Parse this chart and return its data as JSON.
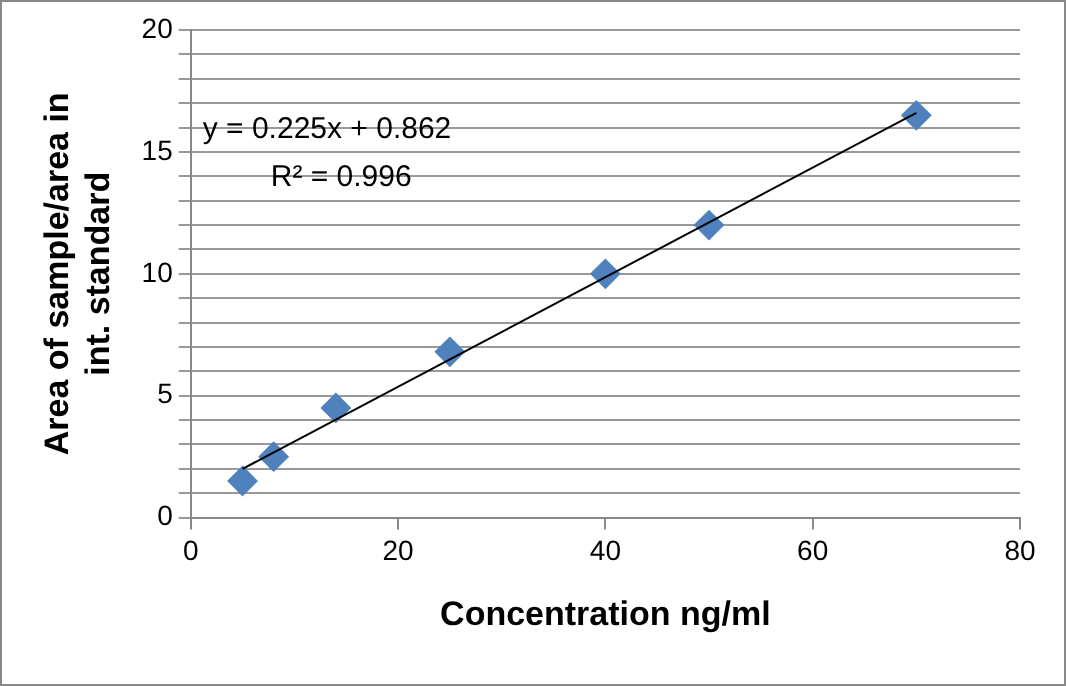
{
  "chart_data": {
    "type": "scatter",
    "xlabel": "Concentration ng/ml",
    "ylabel": "Area of sample/area in\nint. standard",
    "series": [
      {
        "color": "#4f81bd",
        "marker": "diamond",
        "x": [
          5,
          8,
          14,
          25,
          40,
          50,
          70
        ],
        "values": [
          1.5,
          2.5,
          4.5,
          6.8,
          10,
          12,
          16.5
        ]
      },
      {
        "type": "line",
        "color": "#000000",
        "marker": "none",
        "x": [
          5,
          70
        ],
        "values": [
          2.0,
          16.6
        ]
      }
    ],
    "xlim": [
      0,
      80
    ],
    "xticks": [
      0,
      20,
      40,
      60,
      80
    ],
    "ylim": [
      0,
      20
    ],
    "yticks": [
      0,
      {
        "value": 1,
        "label": null
      },
      {
        "value": 2,
        "label": null
      },
      {
        "value": 3,
        "label": null
      },
      {
        "value": 4,
        "label": null
      },
      5,
      {
        "value": 6,
        "label": null
      },
      {
        "value": 7,
        "label": null
      },
      {
        "value": 8,
        "label": null
      },
      {
        "value": 9,
        "label": null
      },
      10,
      {
        "value": 11,
        "label": null
      },
      {
        "value": 12,
        "label": null
      },
      {
        "value": 13,
        "label": null
      },
      {
        "value": 14,
        "label": null
      },
      15,
      {
        "value": 16,
        "label": null
      },
      {
        "value": 17,
        "label": null
      },
      {
        "value": 18,
        "label": null
      },
      {
        "value": 19,
        "label": null
      },
      20
    ],
    "grid": "y",
    "legend": false,
    "annotations": [
      "y = 0.225x + 0.862",
      "R² = 0.996"
    ]
  }
}
